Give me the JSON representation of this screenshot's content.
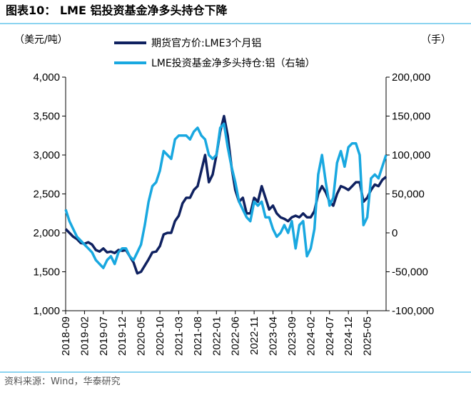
{
  "chart_data": {
    "type": "line",
    "title": "图表10：  LME 铝投资基金净多头持仓下降",
    "y_label": "（美元/吨）",
    "y2_label": "（手）",
    "source": "资料来源：Wind，华泰研究",
    "categories": [
      "2018-09",
      null,
      null,
      null,
      null,
      "2019-02",
      null,
      null,
      null,
      null,
      "2019-07",
      null,
      null,
      null,
      null,
      "2019-12",
      null,
      null,
      null,
      null,
      "2020-05",
      null,
      null,
      null,
      null,
      "2020-10",
      null,
      null,
      null,
      null,
      "2021-03",
      null,
      null,
      null,
      null,
      "2021-08",
      null,
      null,
      null,
      null,
      "2022-01",
      null,
      null,
      null,
      null,
      "2022-06",
      null,
      null,
      null,
      null,
      "2022-11",
      null,
      null,
      null,
      null,
      "2023-04",
      null,
      null,
      null,
      null,
      "2023-09",
      null,
      null,
      null,
      null,
      "2024-02",
      null,
      null,
      null,
      null,
      "2024-07",
      null,
      null,
      null,
      null,
      "2024-12",
      null,
      null,
      null,
      null,
      "2025-05",
      null,
      null,
      null,
      null,
      null
    ],
    "series": [
      {
        "name": "期货官方价:LME3个月铝",
        "color": "#0f2160",
        "values": [
          2050,
          2000,
          1950,
          1920,
          1870,
          1860,
          1880,
          1850,
          1780,
          1760,
          1800,
          1750,
          1760,
          1740,
          1780,
          1770,
          1780,
          1700,
          1620,
          1480,
          1500,
          1580,
          1660,
          1750,
          1760,
          1830,
          1980,
          2000,
          2000,
          2150,
          2220,
          2380,
          2450,
          2450,
          2550,
          2600,
          2800,
          3000,
          2650,
          2750,
          3000,
          3300,
          3500,
          3250,
          2850,
          2550,
          2400,
          2450,
          2250,
          2250,
          2450,
          2400,
          2600,
          2450,
          2300,
          2350,
          2250,
          2200,
          2180,
          2150,
          2200,
          2220,
          2200,
          2250,
          2200,
          2200,
          2280,
          2500,
          2600,
          2520,
          2400,
          2350,
          2500,
          2600,
          2580,
          2550,
          2600,
          2650,
          2650,
          2400,
          2450,
          2550,
          2620,
          2600,
          2680,
          2720
        ]
      },
      {
        "name": "LME投资基金净多头持仓:铝（右轴）",
        "color": "#19a8e0",
        "axis": "y2",
        "values": [
          30000,
          15000,
          5000,
          -5000,
          -10000,
          -15000,
          -20000,
          -25000,
          -35000,
          -40000,
          -45000,
          -35000,
          -30000,
          -40000,
          -25000,
          -20000,
          -20000,
          -30000,
          -35000,
          -25000,
          -15000,
          10000,
          40000,
          60000,
          65000,
          80000,
          105000,
          100000,
          95000,
          120000,
          125000,
          125000,
          125000,
          120000,
          130000,
          135000,
          125000,
          120000,
          100000,
          95000,
          100000,
          135000,
          140000,
          110000,
          85000,
          65000,
          40000,
          30000,
          20000,
          15000,
          40000,
          35000,
          40000,
          20000,
          20000,
          5000,
          -5000,
          0,
          10000,
          0,
          15000,
          -20000,
          10000,
          15000,
          -30000,
          -20000,
          5000,
          75000,
          100000,
          65000,
          35000,
          45000,
          90000,
          105000,
          85000,
          110000,
          115000,
          115000,
          100000,
          10000,
          20000,
          70000,
          75000,
          70000,
          85000,
          100000
        ]
      }
    ],
    "ylim": [
      1000,
      4000
    ],
    "yticks": [
      {
        "value": 1000,
        "label": "1,000"
      },
      {
        "value": 1500,
        "label": "1,500"
      },
      {
        "value": 2000,
        "label": "2,000"
      },
      {
        "value": 2500,
        "label": "2,500"
      },
      {
        "value": 3000,
        "label": "3,000"
      },
      {
        "value": 3500,
        "label": "3,500"
      },
      {
        "value": 4000,
        "label": "4,000"
      }
    ],
    "y2lim": [
      -100000,
      200000
    ],
    "y2ticks": [
      {
        "value": -100000,
        "label": "-100,000"
      },
      {
        "value": -50000,
        "label": "-50,000"
      },
      0,
      {
        "value": 50000,
        "label": "50,000"
      },
      {
        "value": 100000,
        "label": "100,000"
      },
      {
        "value": 150000,
        "label": "150,000"
      },
      {
        "value": 200000,
        "label": "200,000"
      }
    ],
    "grid": false
  }
}
